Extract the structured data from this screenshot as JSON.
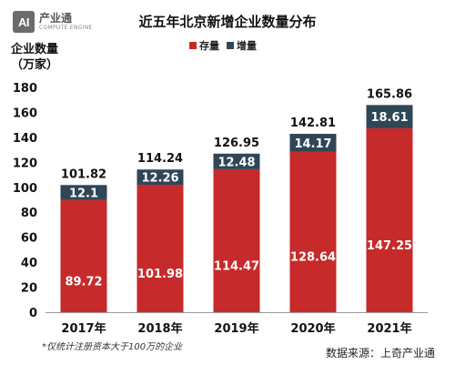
{
  "header": {
    "logo_mark": "AI",
    "logo_name": "产业通",
    "logo_sub": "COMPUTE ENGINE",
    "title": "近五年北京新增企业数量分布"
  },
  "footer": {
    "note": "*仅统计注册资本大于100万的企业",
    "source": "数据来源：上奇产业通"
  },
  "chart_data": {
    "type": "bar",
    "stacked": true,
    "title": "近五年北京新增企业数量分布",
    "ylabel": "企业数量\n（万家）",
    "xlabel": "",
    "categories": [
      "2017年",
      "2018年",
      "2019年",
      "2020年",
      "2021年"
    ],
    "series": [
      {
        "name": "存量",
        "values": [
          89.72,
          101.98,
          114.47,
          128.64,
          147.25
        ],
        "color": "#c62a2a"
      },
      {
        "name": "增量",
        "values": [
          12.1,
          12.26,
          12.48,
          14.17,
          18.61
        ],
        "color": "#2f4657"
      }
    ],
    "totals": [
      101.82,
      114.24,
      126.95,
      142.81,
      165.86
    ],
    "ylim": [
      0,
      180
    ],
    "yticks": [
      0,
      20,
      40,
      60,
      80,
      100,
      120,
      140,
      160,
      180
    ],
    "grid": false,
    "legend": "top-center"
  }
}
